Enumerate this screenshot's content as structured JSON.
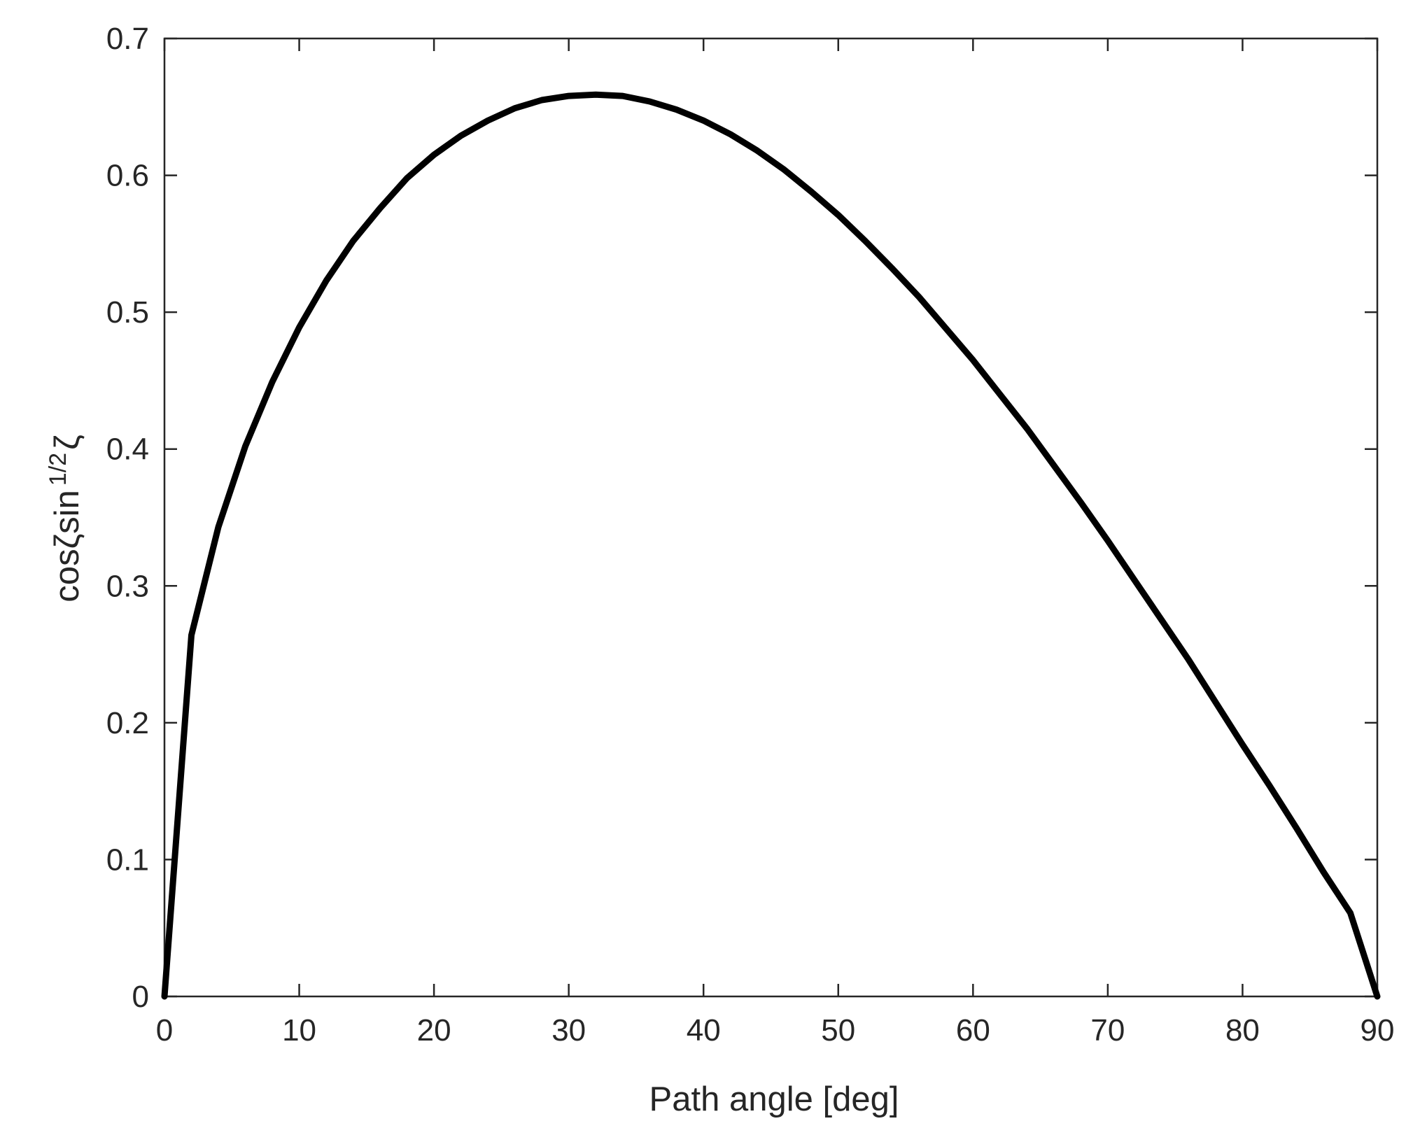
{
  "chart_data": {
    "type": "line",
    "title": "",
    "xlabel": "Path angle [deg]",
    "ylabel": {
      "base": "cosζsin",
      "superscript": "1/2",
      "tail": "ζ"
    },
    "xlim": [
      0,
      90
    ],
    "ylim": [
      0,
      0.7
    ],
    "xticks": [
      0,
      10,
      20,
      30,
      40,
      50,
      60,
      70,
      80,
      90
    ],
    "xtick_labels": [
      "0",
      "10",
      "20",
      "30",
      "40",
      "50",
      "60",
      "70",
      "80",
      "90"
    ],
    "yticks": [
      0,
      0.1,
      0.2,
      0.3,
      0.4,
      0.5,
      0.6,
      0.7
    ],
    "ytick_labels": [
      "0",
      "0.1",
      "0.2",
      "0.3",
      "0.4",
      "0.5",
      "0.6",
      "0.7"
    ],
    "grid": false,
    "box": true,
    "series": [
      {
        "color": "#000000",
        "x": [
          0,
          2,
          4,
          6,
          8,
          10,
          12,
          14,
          16,
          18,
          20,
          22,
          24,
          26,
          28,
          30,
          32,
          34,
          36,
          38,
          40,
          42,
          44,
          46,
          48,
          50,
          52,
          54,
          56,
          58,
          60,
          62,
          64,
          66,
          68,
          70,
          72,
          74,
          76,
          78,
          80,
          82,
          84,
          86,
          88,
          90
        ],
        "y": [
          0,
          0.264,
          0.343,
          0.402,
          0.449,
          0.489,
          0.523,
          0.552,
          0.576,
          0.598,
          0.615,
          0.629,
          0.64,
          0.649,
          0.655,
          0.658,
          0.659,
          0.658,
          0.654,
          0.648,
          0.64,
          0.63,
          0.618,
          0.604,
          0.588,
          0.571,
          0.552,
          0.532,
          0.511,
          0.488,
          0.465,
          0.44,
          0.415,
          0.388,
          0.361,
          0.333,
          0.304,
          0.275,
          0.246,
          0.215,
          0.184,
          0.154,
          0.123,
          0.091,
          0.061,
          0
        ]
      }
    ]
  }
}
